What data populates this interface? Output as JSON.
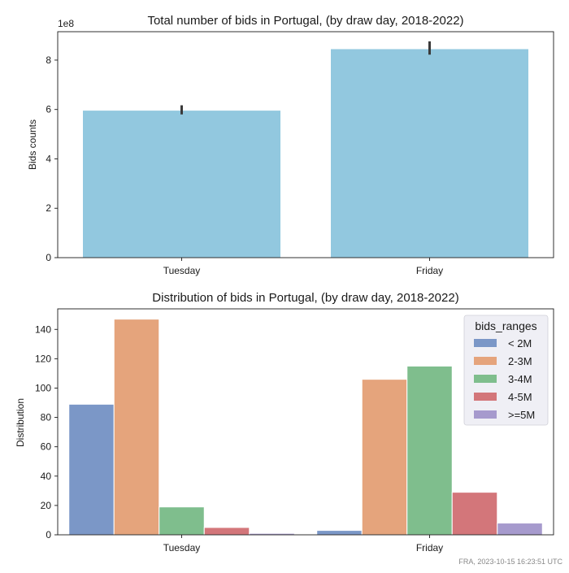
{
  "footer": "FRA, 2023-10-15 16:23:51 UTC",
  "chart_data": [
    {
      "type": "bar",
      "title": "Total number of bids in Portugal, (by draw day, 2018-2022)",
      "xlabel": "",
      "ylabel": "Bids counts",
      "scale_label": "1e8",
      "categories": [
        "Tuesday",
        "Friday"
      ],
      "values": [
        5.97,
        8.46
      ],
      "error_low": [
        5.8,
        8.22
      ],
      "error_high": [
        6.17,
        8.76
      ],
      "ylim": [
        0,
        9.15
      ],
      "yticks": [
        0,
        2,
        4,
        6,
        8
      ],
      "color": "#92C8DF",
      "grid": false
    },
    {
      "type": "bar",
      "title": "Distribution of bids in Portugal, (by draw day, 2018-2022)",
      "xlabel": "",
      "ylabel": "Distribution",
      "categories": [
        "Tuesday",
        "Friday"
      ],
      "ylim": [
        0,
        154
      ],
      "yticks": [
        0,
        20,
        40,
        60,
        80,
        100,
        120,
        140
      ],
      "legend": {
        "title": "bids_ranges",
        "placement": "top-right"
      },
      "series": [
        {
          "name": "< 2M",
          "values": [
            89,
            3
          ],
          "color": "#7B97C7"
        },
        {
          "name": "2-3M",
          "values": [
            147,
            106
          ],
          "color": "#E5A47C"
        },
        {
          "name": "3-4M",
          "values": [
            19,
            115
          ],
          "color": "#7FBE8D"
        },
        {
          "name": "4-5M",
          "values": [
            5,
            29
          ],
          "color": "#D3767A"
        },
        {
          "name": ">=5M",
          "values": [
            1,
            8
          ],
          "color": "#A69ACD"
        }
      ],
      "grid": false
    }
  ]
}
